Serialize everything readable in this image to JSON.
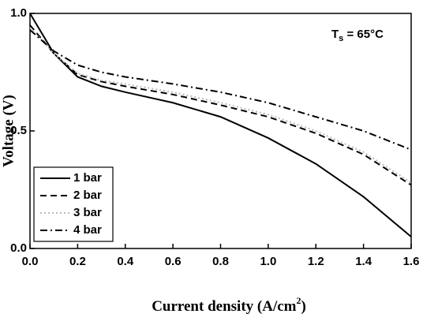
{
  "chart_data": {
    "type": "line",
    "annotation": {
      "main": "T",
      "sub": "s",
      "rest": " = 65°C"
    },
    "x_label": {
      "text": "Current density (A/cm",
      "sup": "2",
      "end": ")"
    },
    "y_label": "Voltage (V)",
    "x": [
      0.0,
      0.1,
      0.2,
      0.3,
      0.4,
      0.6,
      0.8,
      1.0,
      1.2,
      1.4,
      1.6
    ],
    "series": [
      {
        "name": "1 bar",
        "color": "#000000",
        "dash": "solid",
        "values": [
          1.0,
          0.83,
          0.73,
          0.69,
          0.665,
          0.62,
          0.56,
          0.47,
          0.36,
          0.22,
          0.05
        ]
      },
      {
        "name": "2 bar",
        "color": "#000000",
        "dash": "dashed",
        "values": [
          0.95,
          0.83,
          0.74,
          0.71,
          0.69,
          0.655,
          0.61,
          0.56,
          0.49,
          0.4,
          0.27
        ]
      },
      {
        "name": "3 bar",
        "color": "#bbbbbb",
        "dash": "dotted",
        "values": [
          0.94,
          0.83,
          0.745,
          0.715,
          0.7,
          0.665,
          0.62,
          0.57,
          0.5,
          0.41,
          0.28
        ]
      },
      {
        "name": "4 bar",
        "color": "#000000",
        "dash": "dashdot",
        "values": [
          0.93,
          0.84,
          0.78,
          0.75,
          0.73,
          0.7,
          0.665,
          0.62,
          0.56,
          0.5,
          0.42
        ]
      }
    ],
    "xlim": [
      0,
      1.6
    ],
    "xticks": [
      {
        "value": 0,
        "label": "0.0"
      },
      0.2,
      0.4,
      0.6,
      0.8,
      {
        "value": 1,
        "label": "1.0"
      },
      1.2,
      1.4,
      1.6
    ],
    "ylim": [
      0,
      1
    ],
    "yticks": [
      {
        "value": 0,
        "label": "0.0"
      },
      0.5,
      {
        "value": 1,
        "label": "1.0"
      }
    ],
    "legend": "lower left"
  }
}
